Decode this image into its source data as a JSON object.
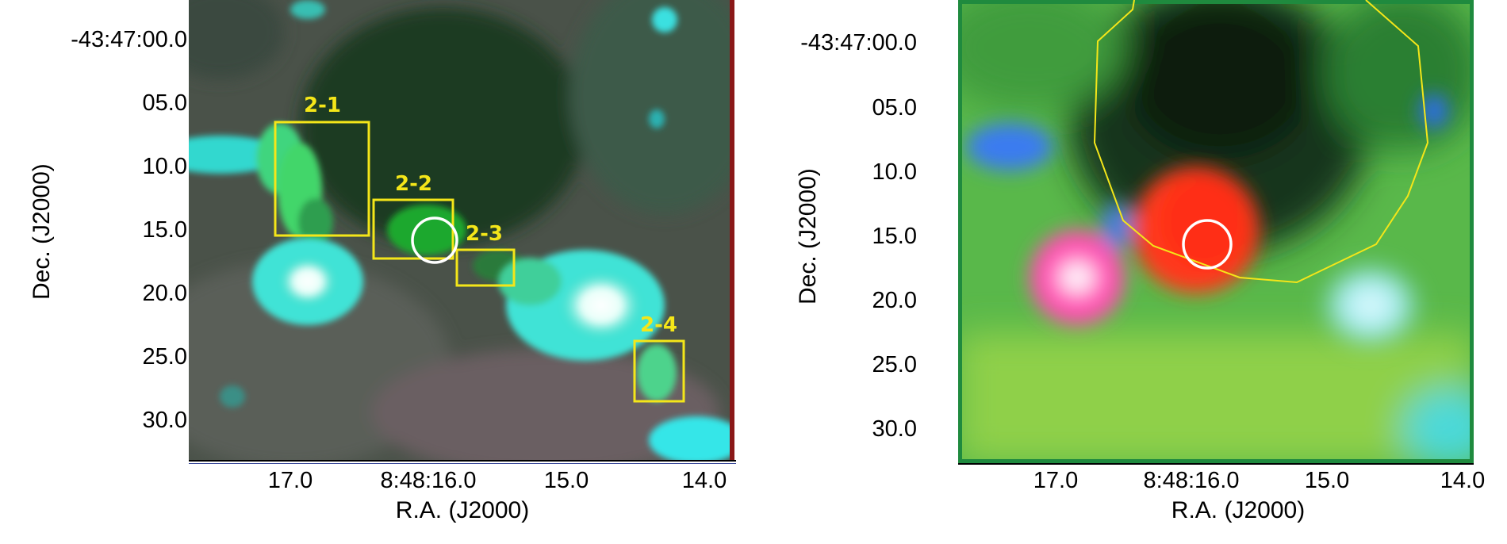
{
  "panels": [
    {
      "id": "left",
      "y_ticks": [
        "-43:47:00.0",
        "05.0",
        "10.0",
        "15.0",
        "20.0",
        "25.0",
        "30.0"
      ],
      "x_ticks": [
        "17.0",
        "8:48:16.0",
        "15.0",
        "14.0"
      ],
      "x_title": "R.A. (J2000)",
      "y_title": "Dec. (J2000)",
      "box_labels": [
        "2-1",
        "2-2",
        "2-3",
        "2-4"
      ],
      "box_color": "#f4e619",
      "circle_color": "#ffffff"
    },
    {
      "id": "right",
      "y_ticks": [
        "-43:47:00.0",
        "05.0",
        "10.0",
        "15.0",
        "20.0",
        "25.0",
        "30.0"
      ],
      "x_ticks": [
        "17.0",
        "8:48:16.0",
        "15.0",
        "14.0"
      ],
      "x_title": "R.A. (J2000)",
      "y_title": "Dec. (J2000)",
      "contour_color": "#f4e619",
      "circle_color": "#ffffff"
    }
  ]
}
